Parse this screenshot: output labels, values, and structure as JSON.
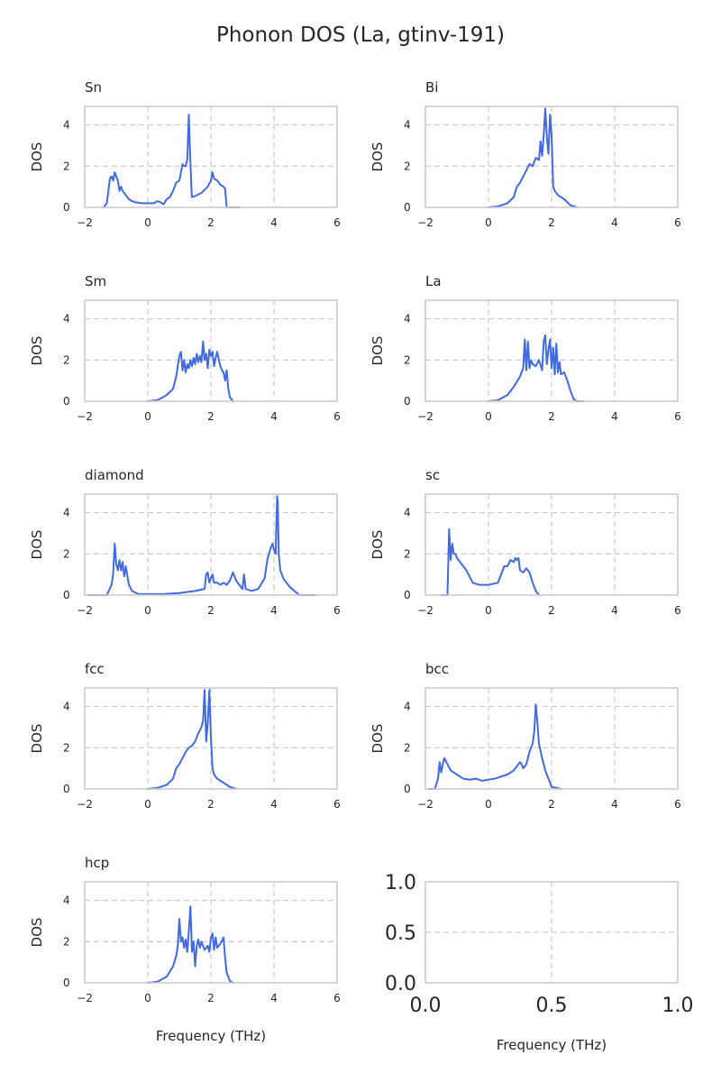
{
  "title": "Phonon DOS (La, gtinv-191)",
  "colors": {
    "series": "#4169e1",
    "frame": "#cccccc",
    "grid": "#cccccc",
    "text": "#262626"
  },
  "chart_data": [
    {
      "type": "line",
      "title": "Sn",
      "xlabel": "",
      "ylabel": "DOS",
      "xlim": [
        -2,
        6
      ],
      "ylim": [
        0,
        4.9
      ],
      "xticks": [
        -2,
        0,
        2,
        4,
        6
      ],
      "yticks": [
        0,
        2,
        4
      ],
      "grid": true,
      "x": [
        -1.4,
        -1.3,
        -1.2,
        -1.15,
        -1.1,
        -1.05,
        -1.0,
        -0.95,
        -0.9,
        -0.85,
        -0.8,
        -0.7,
        -0.6,
        -0.5,
        -0.4,
        -0.2,
        0.0,
        0.2,
        0.3,
        0.4,
        0.5,
        0.6,
        0.7,
        0.8,
        0.9,
        1.0,
        1.1,
        1.15,
        1.2,
        1.25,
        1.3,
        1.32,
        1.35,
        1.38,
        1.4,
        1.5,
        1.7,
        1.9,
        2.0,
        2.05,
        2.1,
        2.2,
        2.3,
        2.4,
        2.45,
        2.5,
        2.6,
        2.9
      ],
      "y": [
        0.0,
        0.2,
        1.4,
        1.5,
        1.3,
        1.7,
        1.5,
        1.3,
        0.8,
        1.0,
        0.8,
        0.6,
        0.4,
        0.3,
        0.25,
        0.2,
        0.2,
        0.2,
        0.3,
        0.25,
        0.15,
        0.4,
        0.5,
        0.8,
        1.2,
        1.3,
        2.1,
        2.0,
        2.0,
        2.3,
        4.5,
        3.5,
        2.2,
        1.0,
        0.5,
        0.55,
        0.7,
        1.0,
        1.3,
        1.7,
        1.4,
        1.3,
        1.1,
        1.0,
        0.9,
        0.0,
        0.0,
        0.0
      ]
    },
    {
      "type": "line",
      "title": "Bi",
      "xlabel": "",
      "ylabel": "DOS",
      "xlim": [
        -2,
        6
      ],
      "ylim": [
        0,
        4.9
      ],
      "xticks": [
        -2,
        0,
        2,
        4,
        6
      ],
      "yticks": [
        0,
        2,
        4
      ],
      "grid": true,
      "x": [
        0.0,
        0.3,
        0.6,
        0.8,
        0.9,
        1.0,
        1.1,
        1.2,
        1.3,
        1.4,
        1.5,
        1.6,
        1.65,
        1.7,
        1.75,
        1.8,
        1.85,
        1.9,
        1.95,
        2.0,
        2.05,
        2.1,
        2.2,
        2.4,
        2.6,
        2.8
      ],
      "y": [
        0.0,
        0.05,
        0.2,
        0.5,
        1.0,
        1.2,
        1.5,
        1.8,
        2.1,
        2.0,
        2.4,
        2.3,
        3.2,
        2.5,
        3.5,
        4.8,
        3.4,
        2.6,
        4.5,
        3.5,
        1.0,
        0.8,
        0.6,
        0.4,
        0.1,
        0.0
      ]
    },
    {
      "type": "line",
      "title": "Sm",
      "xlabel": "",
      "ylabel": "DOS",
      "xlim": [
        -2,
        6
      ],
      "ylim": [
        0,
        4.9
      ],
      "xticks": [
        -2,
        0,
        2,
        4,
        6
      ],
      "yticks": [
        0,
        2,
        4
      ],
      "grid": true,
      "x": [
        0.0,
        0.3,
        0.6,
        0.8,
        0.9,
        1.0,
        1.05,
        1.1,
        1.15,
        1.2,
        1.25,
        1.3,
        1.35,
        1.4,
        1.45,
        1.5,
        1.55,
        1.6,
        1.65,
        1.7,
        1.75,
        1.8,
        1.85,
        1.9,
        1.95,
        2.0,
        2.05,
        2.1,
        2.15,
        2.2,
        2.25,
        2.3,
        2.35,
        2.4,
        2.45,
        2.5,
        2.55,
        2.6,
        2.7
      ],
      "y": [
        0.0,
        0.05,
        0.3,
        0.6,
        1.2,
        2.2,
        2.4,
        1.5,
        2.0,
        1.4,
        1.8,
        1.6,
        2.0,
        1.7,
        2.1,
        1.8,
        2.3,
        1.9,
        2.2,
        1.9,
        2.9,
        2.0,
        2.3,
        1.6,
        2.5,
        2.2,
        2.4,
        1.7,
        2.1,
        2.4,
        2.0,
        1.7,
        1.5,
        1.4,
        1.0,
        1.5,
        0.6,
        0.2,
        0.0
      ]
    },
    {
      "type": "line",
      "title": "La",
      "xlabel": "",
      "ylabel": "DOS",
      "xlim": [
        -2,
        6
      ],
      "ylim": [
        0,
        4.9
      ],
      "xticks": [
        -2,
        0,
        2,
        4,
        6
      ],
      "yticks": [
        0,
        2,
        4
      ],
      "grid": true,
      "x": [
        0.0,
        0.3,
        0.6,
        0.8,
        1.0,
        1.1,
        1.15,
        1.2,
        1.25,
        1.3,
        1.35,
        1.4,
        1.5,
        1.6,
        1.7,
        1.75,
        1.8,
        1.85,
        1.9,
        1.95,
        2.0,
        2.05,
        2.1,
        2.15,
        2.2,
        2.25,
        2.3,
        2.4,
        2.5,
        2.6,
        2.7,
        2.8,
        3.0
      ],
      "y": [
        0.0,
        0.05,
        0.3,
        0.7,
        1.2,
        1.6,
        3.0,
        1.5,
        2.9,
        1.6,
        2.0,
        1.8,
        1.7,
        2.0,
        1.5,
        2.9,
        3.2,
        1.8,
        2.5,
        3.0,
        1.6,
        2.6,
        1.3,
        2.8,
        1.4,
        1.9,
        1.3,
        1.4,
        1.0,
        0.5,
        0.1,
        0.0,
        0.0
      ]
    },
    {
      "type": "line",
      "title": "diamond",
      "xlabel": "",
      "ylabel": "DOS",
      "xlim": [
        -2,
        6
      ],
      "ylim": [
        0,
        4.9
      ],
      "xticks": [
        -2,
        0,
        2,
        4,
        6
      ],
      "yticks": [
        0,
        2,
        4
      ],
      "grid": true,
      "x": [
        -1.9,
        -1.6,
        -1.3,
        -1.15,
        -1.1,
        -1.05,
        -1.0,
        -0.95,
        -0.9,
        -0.85,
        -0.8,
        -0.75,
        -0.7,
        -0.6,
        -0.5,
        -0.3,
        0.0,
        0.5,
        1.0,
        1.5,
        1.8,
        1.85,
        1.9,
        1.95,
        2.0,
        2.05,
        2.1,
        2.2,
        2.3,
        2.4,
        2.5,
        2.6,
        2.7,
        2.8,
        2.9,
        3.0,
        3.05,
        3.1,
        3.3,
        3.5,
        3.7,
        3.8,
        3.9,
        3.95,
        4.0,
        4.05,
        4.1,
        4.12,
        4.15,
        4.2,
        4.3,
        4.5,
        4.8,
        5.3
      ],
      "y": [
        0.0,
        0.0,
        0.0,
        0.5,
        1.0,
        2.5,
        1.5,
        1.2,
        1.7,
        1.2,
        1.6,
        0.9,
        1.4,
        0.5,
        0.2,
        0.05,
        0.05,
        0.05,
        0.1,
        0.2,
        0.3,
        1.0,
        1.1,
        0.6,
        0.8,
        1.0,
        0.6,
        0.6,
        0.5,
        0.6,
        0.5,
        0.7,
        1.1,
        0.7,
        0.5,
        0.3,
        1.0,
        0.3,
        0.2,
        0.3,
        0.8,
        1.8,
        2.3,
        2.5,
        2.2,
        2.0,
        4.8,
        4.5,
        2.0,
        1.2,
        0.8,
        0.4,
        0.0,
        0.0
      ]
    },
    {
      "type": "line",
      "title": "sc",
      "xlabel": "",
      "ylabel": "DOS",
      "xlim": [
        -2,
        6
      ],
      "ylim": [
        0,
        4.9
      ],
      "xticks": [
        -2,
        0,
        2,
        4,
        6
      ],
      "yticks": [
        0,
        2,
        4
      ],
      "grid": true,
      "x": [
        -1.5,
        -1.3,
        -1.25,
        -1.2,
        -1.15,
        -1.1,
        -1.05,
        -1.0,
        -0.9,
        -0.8,
        -0.7,
        -0.6,
        -0.5,
        -0.3,
        0.0,
        0.3,
        0.4,
        0.5,
        0.6,
        0.7,
        0.8,
        0.85,
        0.9,
        0.95,
        1.0,
        1.1,
        1.2,
        1.3,
        1.4,
        1.5,
        1.6
      ],
      "y": [
        0.0,
        0.0,
        3.2,
        1.7,
        2.5,
        2.0,
        2.0,
        1.8,
        1.6,
        1.4,
        1.2,
        0.9,
        0.6,
        0.5,
        0.5,
        0.6,
        1.0,
        1.4,
        1.4,
        1.7,
        1.6,
        1.8,
        1.7,
        1.8,
        1.2,
        1.1,
        1.3,
        1.1,
        0.6,
        0.2,
        0.0
      ]
    },
    {
      "type": "line",
      "title": "fcc",
      "xlabel": "",
      "ylabel": "DOS",
      "xlim": [
        -2,
        6
      ],
      "ylim": [
        0,
        4.9
      ],
      "xticks": [
        -2,
        0,
        2,
        4,
        6
      ],
      "yticks": [
        0,
        2,
        4
      ],
      "grid": true,
      "x": [
        0.0,
        0.3,
        0.6,
        0.8,
        0.9,
        1.0,
        1.1,
        1.2,
        1.3,
        1.4,
        1.5,
        1.6,
        1.7,
        1.75,
        1.8,
        1.85,
        1.9,
        1.95,
        2.0,
        2.05,
        2.1,
        2.2,
        2.4,
        2.6,
        2.8
      ],
      "y": [
        0.0,
        0.05,
        0.2,
        0.5,
        1.0,
        1.2,
        1.5,
        1.8,
        2.0,
        2.1,
        2.3,
        2.7,
        3.0,
        3.3,
        4.8,
        2.3,
        3.2,
        4.8,
        2.5,
        1.0,
        0.7,
        0.5,
        0.3,
        0.1,
        0.0
      ]
    },
    {
      "type": "line",
      "title": "bcc",
      "xlabel": "",
      "ylabel": "DOS",
      "xlim": [
        -2,
        6
      ],
      "ylim": [
        0,
        4.9
      ],
      "xticks": [
        -2,
        0,
        2,
        4,
        6
      ],
      "yticks": [
        0,
        2,
        4
      ],
      "grid": true,
      "x": [
        -1.9,
        -1.7,
        -1.6,
        -1.55,
        -1.5,
        -1.45,
        -1.4,
        -1.3,
        -1.2,
        -1.0,
        -0.8,
        -0.6,
        -0.4,
        -0.2,
        0.0,
        0.2,
        0.4,
        0.6,
        0.8,
        0.9,
        1.0,
        1.05,
        1.1,
        1.2,
        1.3,
        1.4,
        1.45,
        1.5,
        1.55,
        1.6,
        1.7,
        1.8,
        1.9,
        2.0,
        2.3
      ],
      "y": [
        0.0,
        0.0,
        0.5,
        1.3,
        0.8,
        1.2,
        1.5,
        1.2,
        0.9,
        0.7,
        0.5,
        0.45,
        0.5,
        0.4,
        0.45,
        0.5,
        0.6,
        0.7,
        0.9,
        1.1,
        1.3,
        1.2,
        1.0,
        1.2,
        1.8,
        2.2,
        2.8,
        4.1,
        3.2,
        2.2,
        1.5,
        0.9,
        0.5,
        0.1,
        0.0
      ]
    },
    {
      "type": "line",
      "title": "hcp",
      "xlabel": "Frequency (THz)",
      "ylabel": "DOS",
      "xlim": [
        -2,
        6
      ],
      "ylim": [
        0,
        4.9
      ],
      "xticks": [
        -2,
        0,
        2,
        4,
        6
      ],
      "yticks": [
        0,
        2,
        4
      ],
      "grid": true,
      "x": [
        0.0,
        0.3,
        0.6,
        0.8,
        0.9,
        0.95,
        1.0,
        1.05,
        1.1,
        1.15,
        1.2,
        1.25,
        1.3,
        1.35,
        1.4,
        1.45,
        1.5,
        1.55,
        1.6,
        1.65,
        1.7,
        1.8,
        1.9,
        1.95,
        2.0,
        2.05,
        2.1,
        2.15,
        2.2,
        2.3,
        2.4,
        2.45,
        2.5,
        2.6,
        2.7
      ],
      "y": [
        0.0,
        0.05,
        0.3,
        0.8,
        1.3,
        1.8,
        3.1,
        2.0,
        2.2,
        1.7,
        2.1,
        1.5,
        2.5,
        3.7,
        1.5,
        2.0,
        0.8,
        1.8,
        2.1,
        1.7,
        2.0,
        1.6,
        1.8,
        1.5,
        2.2,
        2.4,
        1.6,
        2.2,
        1.7,
        1.9,
        2.2,
        1.2,
        0.5,
        0.1,
        0.0
      ]
    },
    {
      "type": "line",
      "title": "",
      "xlabel": "Frequency (THz)",
      "ylabel": "",
      "xlim": [
        0,
        1
      ],
      "ylim": [
        0,
        1
      ],
      "xticks": [
        "0.0",
        "0.5",
        "1.0"
      ],
      "yticks": [
        "0.0",
        "0.5",
        "1.0"
      ],
      "grid": true,
      "x": [],
      "y": []
    }
  ]
}
